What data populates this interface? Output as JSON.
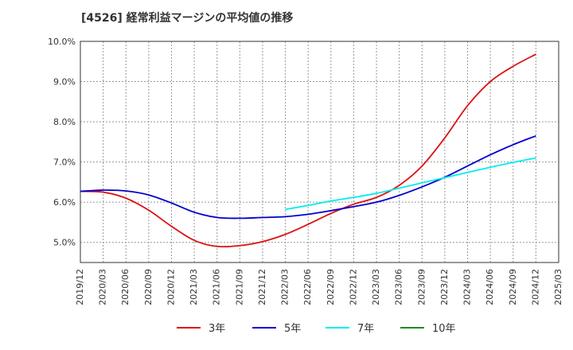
{
  "chart_data": {
    "type": "line",
    "title": "[4526]  経常利益マージンの平均値の推移",
    "xlabel": "",
    "ylabel": "",
    "ylim": [
      4.5,
      10.0
    ],
    "yticks": [
      "10.0%",
      "9.0%",
      "8.0%",
      "7.0%",
      "6.0%",
      "5.0%"
    ],
    "ytick_values": [
      10.0,
      9.0,
      8.0,
      7.0,
      6.0,
      5.0
    ],
    "x_categories": [
      "2019/12",
      "2020/03",
      "2020/06",
      "2020/09",
      "2020/12",
      "2021/03",
      "2021/06",
      "2021/09",
      "2021/12",
      "2022/03",
      "2022/06",
      "2022/09",
      "2022/12",
      "2023/03",
      "2023/06",
      "2023/09",
      "2023/12",
      "2024/03",
      "2024/06",
      "2024/09",
      "2024/12",
      "2025/03"
    ],
    "grid": true,
    "legend_position": "bottom",
    "series": [
      {
        "name": "3年",
        "color": "#dd1111",
        "values": [
          6.27,
          6.25,
          6.1,
          5.8,
          5.4,
          5.05,
          4.9,
          4.92,
          5.02,
          5.2,
          5.45,
          5.72,
          5.95,
          6.12,
          6.42,
          6.9,
          7.6,
          8.4,
          9.0,
          9.38,
          9.68,
          null
        ]
      },
      {
        "name": "5年",
        "color": "#0000cc",
        "values": [
          6.27,
          6.3,
          6.28,
          6.18,
          5.98,
          5.75,
          5.62,
          5.6,
          5.62,
          5.64,
          5.7,
          5.79,
          5.89,
          6.0,
          6.17,
          6.38,
          6.62,
          6.9,
          7.18,
          7.43,
          7.65,
          null
        ]
      },
      {
        "name": "7年",
        "color": "#00eeee",
        "values": [
          null,
          null,
          null,
          null,
          null,
          null,
          null,
          null,
          null,
          5.82,
          5.92,
          6.03,
          6.12,
          6.22,
          6.35,
          6.48,
          6.61,
          6.74,
          6.87,
          6.99,
          7.1,
          null
        ]
      },
      {
        "name": "10年",
        "color": "#228822",
        "values": [
          null,
          null,
          null,
          null,
          null,
          null,
          null,
          null,
          null,
          null,
          null,
          null,
          null,
          null,
          null,
          null,
          null,
          null,
          null,
          null,
          null,
          null
        ]
      }
    ]
  }
}
